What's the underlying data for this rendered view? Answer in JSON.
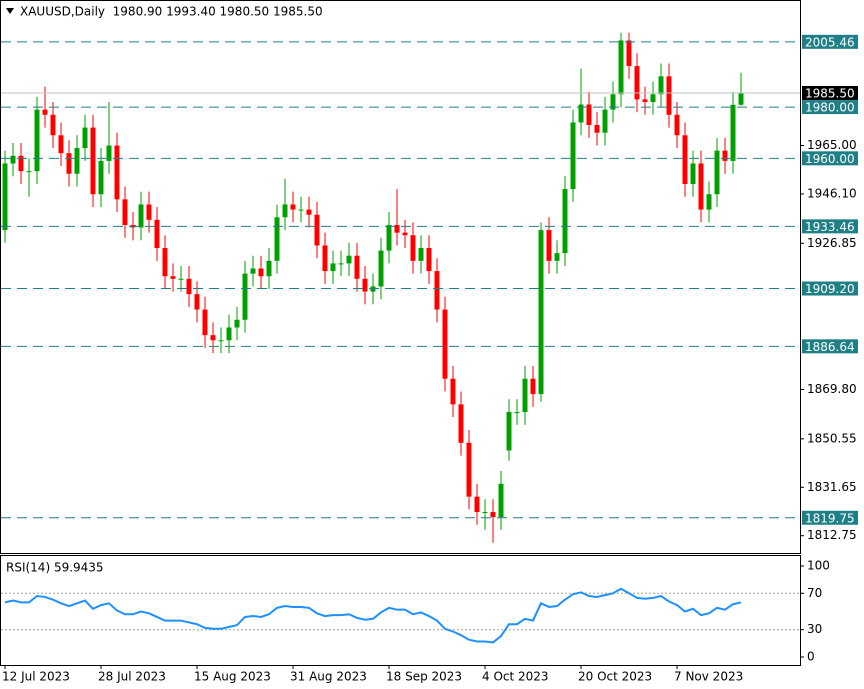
{
  "chart_data": [
    {
      "type": "candlestick",
      "header": "XAUUSD,Daily  1980.90 1993.40 1980.50 1985.50",
      "categories": [
        "12 Jul 2023",
        null,
        null,
        null,
        null,
        null,
        null,
        null,
        null,
        null,
        null,
        null,
        "28 Jul 2023",
        null,
        null,
        null,
        null,
        null,
        null,
        null,
        null,
        null,
        null,
        null,
        "15 Aug 2023",
        null,
        null,
        null,
        null,
        null,
        null,
        null,
        null,
        null,
        null,
        null,
        "31 Aug 2023",
        null,
        null,
        null,
        null,
        null,
        null,
        null,
        null,
        null,
        null,
        null,
        "18 Sep 2023",
        null,
        null,
        null,
        null,
        null,
        null,
        null,
        null,
        null,
        null,
        null,
        "4 Oct 2023",
        null,
        null,
        null,
        null,
        null,
        null,
        null,
        null,
        null,
        null,
        null,
        "20 Oct 2023",
        null,
        null,
        null,
        null,
        null,
        null,
        null,
        null,
        null,
        null,
        null,
        "7 Nov 2023",
        null,
        null,
        null,
        null,
        null,
        null,
        null,
        null
      ],
      "open": [
        1932,
        1958,
        1961,
        1955,
        1955,
        1979,
        1977,
        1969,
        1962,
        1954,
        1964,
        1972,
        1946,
        1959,
        1965,
        1944,
        1934,
        1933,
        1942,
        1936,
        1925,
        1914,
        1913,
        1913,
        1907,
        1901,
        1891,
        1889,
        1889,
        1894,
        1897,
        1915,
        1917,
        1914,
        1920,
        1937,
        1942,
        1940,
        1940,
        1938,
        1926,
        1916,
        1919,
        1919,
        1922,
        1913,
        1908,
        1910,
        1924,
        1934,
        1931,
        1930,
        1920,
        1925,
        1916,
        1901,
        1874,
        1864,
        1849,
        1828,
        1822,
        1822,
        1820,
        1846,
        1861,
        1861,
        1874,
        1868,
        1932,
        1920,
        1923,
        1948,
        1974,
        1981,
        1973,
        1970,
        1979,
        1985,
        2006,
        1996,
        1983,
        1982,
        1985,
        1992,
        1977,
        1969,
        1950,
        1958,
        1940,
        1946,
        1963,
        1959,
        1980.9
      ],
      "high": [
        1963,
        1966,
        1966,
        1960,
        1984,
        1988,
        1982,
        1974,
        1967,
        1969,
        1977,
        1977,
        1964,
        1982,
        1970,
        1949,
        1939,
        1947,
        1947,
        1941,
        1930,
        1919,
        1918,
        1918,
        1912,
        1906,
        1896,
        1894,
        1899,
        1902,
        1920,
        1922,
        1922,
        1925,
        1942,
        1952,
        1947,
        1945,
        1945,
        1943,
        1931,
        1924,
        1924,
        1927,
        1927,
        1918,
        1915,
        1929,
        1939,
        1948,
        1936,
        1935,
        1930,
        1930,
        1921,
        1906,
        1879,
        1869,
        1854,
        1833,
        1827,
        1827,
        1838,
        1866,
        1866,
        1879,
        1879,
        1935,
        1937,
        1928,
        1953,
        1979,
        1995,
        1986,
        1978,
        1984,
        1990,
        2009,
        2009,
        2001,
        1988,
        1990,
        1997,
        1997,
        1982,
        1974,
        1963,
        1963,
        1951,
        1968,
        1968,
        1986,
        1993.4
      ],
      "low": [
        1927,
        1953,
        1950,
        1945,
        1950,
        1972,
        1964,
        1957,
        1949,
        1949,
        1959,
        1941,
        1941,
        1954,
        1939,
        1929,
        1928,
        1928,
        1931,
        1920,
        1909,
        1908,
        1908,
        1902,
        1896,
        1886,
        1884,
        1884,
        1884,
        1889,
        1892,
        1910,
        1909,
        1909,
        1915,
        1932,
        1935,
        1935,
        1933,
        1921,
        1911,
        1911,
        1914,
        1914,
        1908,
        1903,
        1903,
        1905,
        1919,
        1926,
        1925,
        1915,
        1915,
        1911,
        1896,
        1869,
        1859,
        1844,
        1823,
        1817,
        1815,
        1810,
        1815,
        1842,
        1856,
        1856,
        1863,
        1865,
        1915,
        1915,
        1918,
        1943,
        1969,
        1968,
        1965,
        1965,
        1974,
        1980,
        1991,
        1978,
        1977,
        1977,
        1980,
        1972,
        1964,
        1945,
        1945,
        1935,
        1935,
        1941,
        1954,
        1954,
        1980.5
      ],
      "close": [
        1958,
        1961,
        1955,
        1955,
        1979,
        1977,
        1969,
        1962,
        1954,
        1964,
        1972,
        1946,
        1959,
        1965,
        1944,
        1934,
        1933,
        1942,
        1936,
        1925,
        1914,
        1913,
        1913,
        1907,
        1901,
        1891,
        1889,
        1889,
        1894,
        1897,
        1915,
        1917,
        1914,
        1920,
        1937,
        1942,
        1940,
        1940,
        1938,
        1926,
        1916,
        1919,
        1919,
        1922,
        1913,
        1908,
        1910,
        1924,
        1934,
        1931,
        1930,
        1920,
        1925,
        1916,
        1901,
        1874,
        1864,
        1849,
        1828,
        1822,
        1822,
        1820,
        1833,
        1861,
        1861,
        1874,
        1868,
        1932,
        1920,
        1923,
        1948,
        1974,
        1981,
        1973,
        1970,
        1979,
        1985,
        2006,
        1996,
        1983,
        1982,
        1985,
        1992,
        1977,
        1969,
        1950,
        1958,
        1940,
        1946,
        1963,
        1959,
        1980.9,
        1985.5
      ],
      "up_color": "#00a000",
      "down_color": "#ff0000",
      "ylim": [
        1806,
        2021
      ],
      "yticks": [
        1812.75,
        1831.65,
        1850.55,
        {
          "value": 1869.8,
          "label": "1869.80"
        },
        1926.85,
        {
          "value": 1946.1,
          "label": "1946.10"
        },
        {
          "value": 1965,
          "label": "1965.00"
        }
      ],
      "levels": [
        2005.46,
        {
          "value": 1980,
          "label": "1980.00"
        },
        {
          "value": 1960,
          "label": "1960.00"
        },
        1933.46,
        {
          "value": 1909.2,
          "label": "1909.20"
        },
        1886.64,
        1819.75
      ],
      "level_color": "#1f7f86",
      "last_price": {
        "value": 1985.5,
        "label": "1985.50"
      }
    },
    {
      "type": "line",
      "title": "RSI(14) 59.9435",
      "values": [
        60,
        62,
        60,
        60,
        67,
        66,
        63,
        59,
        56,
        59,
        62,
        53,
        57,
        59,
        51,
        47,
        47,
        50,
        48,
        44,
        40,
        40,
        40,
        38,
        36,
        32,
        31,
        31,
        33,
        35,
        44,
        45,
        44,
        47,
        54,
        56,
        55,
        55,
        54,
        48,
        45,
        46,
        46,
        47,
        43,
        41,
        42,
        49,
        54,
        52,
        52,
        47,
        49,
        45,
        40,
        31,
        28,
        24,
        19,
        17,
        17,
        16,
        23,
        36,
        36,
        42,
        40,
        59,
        55,
        56,
        63,
        69,
        71,
        67,
        66,
        68,
        70,
        75,
        70,
        65,
        64,
        65,
        67,
        61,
        57,
        50,
        53,
        46,
        48,
        54,
        52,
        58,
        59.9435
      ],
      "color": "#1e90ff",
      "ylim": [
        0,
        100
      ],
      "yticks": [
        0,
        30,
        70,
        100
      ],
      "levels": [
        30,
        70
      ]
    }
  ]
}
